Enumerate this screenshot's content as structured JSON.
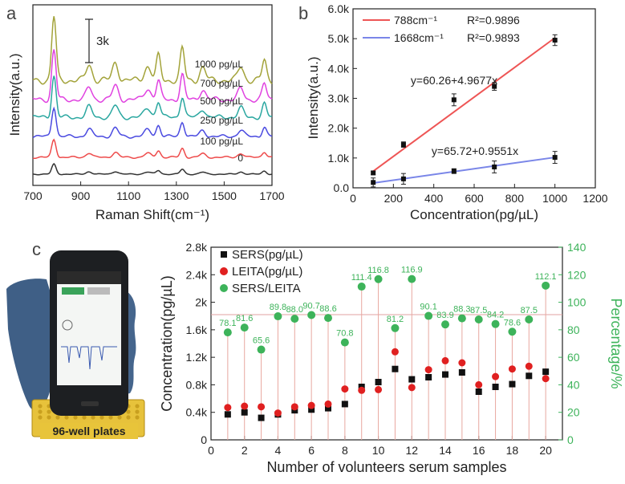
{
  "panel_labels": {
    "a": "a",
    "b": "b",
    "c": "c"
  },
  "photo": {
    "caption": "96-well plates",
    "colors": {
      "device": "#1d1f22",
      "screen": "#f4f6f4",
      "glove": "#3f5f86",
      "plate": "#e7c23b"
    }
  },
  "chart_data": [
    {
      "type": "line",
      "panel": "a",
      "xlabel": "Raman Shift(cm⁻¹)",
      "ylabel": "Intensity(a.u.)",
      "xlim": [
        700,
        1700
      ],
      "xticks": [
        700,
        900,
        1100,
        1300,
        1500,
        1700
      ],
      "xtick_labels": [
        "700",
        "900",
        "1100",
        "1300",
        "1500",
        "1700"
      ],
      "scale_bar_label": "3k",
      "grid": false,
      "peaks_label_positions": "right",
      "series": [
        {
          "name": "0",
          "color": "#333333",
          "offset": 0,
          "amp": 0.25
        },
        {
          "name": "100 pg/µL",
          "color": "#ee4b4b",
          "offset": 1,
          "amp": 0.45
        },
        {
          "name": "250 pg/µL",
          "color": "#4a4ae0",
          "offset": 2,
          "amp": 0.75
        },
        {
          "name": "500 pg/µL",
          "color": "#2aa7a0",
          "offset": 3,
          "amp": 1.05
        },
        {
          "name": "700 pg/µL",
          "color": "#e042e0",
          "offset": 4,
          "amp": 1.25
        },
        {
          "name": "1000 pg/µL",
          "color": "#a3a33a",
          "offset": 5,
          "amp": 1.6
        }
      ],
      "peaks": [
        {
          "x": 788,
          "h": 1.0,
          "w": 9
        },
        {
          "x": 935,
          "h": 0.25,
          "w": 12
        },
        {
          "x": 1045,
          "h": 0.28,
          "w": 12
        },
        {
          "x": 1180,
          "h": 0.22,
          "w": 14
        },
        {
          "x": 1225,
          "h": 0.38,
          "w": 9
        },
        {
          "x": 1325,
          "h": 0.5,
          "w": 9
        },
        {
          "x": 1410,
          "h": 0.2,
          "w": 12
        },
        {
          "x": 1570,
          "h": 0.22,
          "w": 12
        },
        {
          "x": 1668,
          "h": 0.32,
          "w": 9
        }
      ]
    },
    {
      "type": "scatter",
      "panel": "b",
      "xlabel": "Concentration(pg/µL)",
      "ylabel": "Intensity(a.u.)",
      "xlim": [
        0,
        1200
      ],
      "ylim": [
        0,
        6000
      ],
      "xticks": [
        0,
        200,
        400,
        600,
        800,
        1000,
        1200
      ],
      "xtick_labels": [
        "0",
        "200",
        "400",
        "600",
        "800",
        "1000",
        "1200"
      ],
      "yticks": [
        0,
        1000,
        2000,
        3000,
        4000,
        5000,
        6000
      ],
      "ytick_labels": [
        "0.0",
        "1.0k",
        "2.0k",
        "3.0k",
        "4.0k",
        "5.0k",
        "6.0k"
      ],
      "legend_position": "top-left",
      "series": [
        {
          "name": "788cm⁻¹",
          "r2": "R²=0.9896",
          "color": "#ee5555",
          "fit_label": "y=60.26+4.9677x",
          "x": [
            100,
            250,
            500,
            700,
            1000
          ],
          "y": [
            500,
            1450,
            2950,
            3400,
            4950
          ],
          "err": [
            60,
            90,
            200,
            130,
            180
          ],
          "fit": [
            60.26,
            4.9677
          ]
        },
        {
          "name": "1668cm⁻¹",
          "r2": "R²=0.9893",
          "color": "#7a86e8",
          "fit_label": "y=65.72+0.9551x",
          "x": [
            100,
            250,
            500,
            700,
            1000
          ],
          "y": [
            180,
            300,
            560,
            700,
            1020
          ],
          "err": [
            150,
            180,
            80,
            200,
            200
          ],
          "fit": [
            65.72,
            0.9551
          ]
        }
      ]
    },
    {
      "type": "scatter",
      "panel": "c",
      "xlabel": "Number of volunteers serum samples",
      "ylabel": "Concentration(pg/µL)",
      "y2label": "Percentage/%",
      "xlim": [
        0,
        21
      ],
      "ylim": [
        0,
        2800
      ],
      "y2lim": [
        0,
        140
      ],
      "xticks": [
        0,
        2,
        4,
        6,
        8,
        10,
        12,
        14,
        16,
        18,
        20
      ],
      "xtick_labels": [
        "0",
        "2",
        "4",
        "6",
        "8",
        "10",
        "12",
        "14",
        "16",
        "18",
        "20"
      ],
      "yticks": [
        0,
        400,
        800,
        1200,
        1600,
        2000,
        2400,
        2800
      ],
      "ytick_labels": [
        "0",
        "0.4k",
        "0.8k",
        "1.2k",
        "1.6k",
        "2k",
        "2.4k",
        "2.8k"
      ],
      "y2ticks": [
        0,
        20,
        40,
        60,
        80,
        100,
        120,
        140
      ],
      "y2tick_labels": [
        "0",
        "20",
        "40",
        "60",
        "80",
        "100",
        "120",
        "140"
      ],
      "reference_line_y2": 91,
      "legend_position": "top-left",
      "x": [
        1,
        2,
        3,
        4,
        5,
        6,
        7,
        8,
        9,
        10,
        11,
        12,
        13,
        14,
        15,
        16,
        17,
        18,
        19,
        20
      ],
      "series": [
        {
          "name": "SERS(pg/µL)",
          "color": "#111111",
          "marker": "square",
          "axis": "left",
          "values": [
            370,
            400,
            320,
            370,
            430,
            440,
            460,
            520,
            770,
            840,
            1030,
            880,
            910,
            950,
            980,
            700,
            770,
            810,
            930,
            990
          ]
        },
        {
          "name": "LEITA(pg/µL)",
          "color": "#e02020",
          "marker": "circle",
          "axis": "left",
          "values": [
            470,
            490,
            480,
            390,
            480,
            500,
            520,
            740,
            720,
            730,
            1280,
            760,
            1020,
            1150,
            1120,
            800,
            920,
            1030,
            1070,
            890
          ]
        },
        {
          "name": "SERS/LEITA",
          "color": "#3db35a",
          "marker": "circle",
          "axis": "right",
          "values": [
            78.1,
            81.6,
            65.6,
            89.8,
            88.0,
            90.7,
            88.6,
            70.8,
            111.4,
            116.8,
            81.2,
            116.9,
            90.1,
            83.9,
            88.3,
            87.5,
            84.2,
            78.6,
            87.5,
            112.1
          ],
          "labels": [
            "78.1",
            "81.6",
            "65.6",
            "89.8",
            "88.0",
            "90.7",
            "88.6",
            "70.8",
            "111.4",
            "116.8",
            "81.2",
            "116.9",
            "90.1",
            "83.9",
            "88.3",
            "87.5",
            "84.2",
            "78.6",
            "87.5",
            "112.1"
          ]
        }
      ]
    }
  ]
}
